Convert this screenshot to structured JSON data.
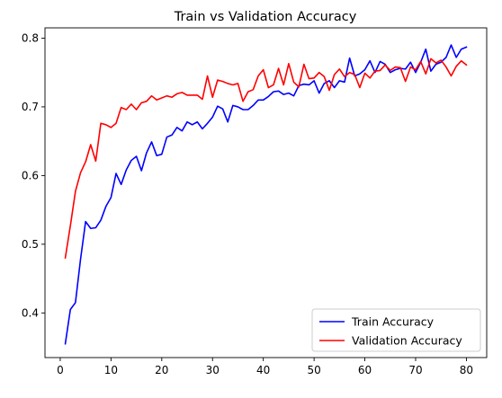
{
  "chart_data": {
    "type": "line",
    "title": "Train vs Validation Accuracy",
    "xlabel": "",
    "ylabel": "",
    "xlim": [
      -3,
      84
    ],
    "ylim": [
      0.335,
      0.815
    ],
    "xticks": [
      0,
      10,
      20,
      30,
      40,
      50,
      60,
      70,
      80
    ],
    "yticks": [
      0.4,
      0.5,
      0.6,
      0.7,
      0.8
    ],
    "grid": false,
    "legend_position": "lower-right",
    "x": [
      1,
      2,
      3,
      4,
      5,
      6,
      7,
      8,
      9,
      10,
      11,
      12,
      13,
      14,
      15,
      16,
      17,
      18,
      19,
      20,
      21,
      22,
      23,
      24,
      25,
      26,
      27,
      28,
      29,
      30,
      31,
      32,
      33,
      34,
      35,
      36,
      37,
      38,
      39,
      40,
      41,
      42,
      43,
      44,
      45,
      46,
      47,
      48,
      49,
      50,
      51,
      52,
      53,
      54,
      55,
      56,
      57,
      58,
      59,
      60,
      61,
      62,
      63,
      64,
      65,
      66,
      67,
      68,
      69,
      70,
      71,
      72,
      73,
      74,
      75,
      76,
      77,
      78,
      79,
      80
    ],
    "series": [
      {
        "name": "Train Accuracy",
        "color": "#0000ff",
        "values": [
          0.355,
          0.405,
          0.415,
          0.478,
          0.533,
          0.523,
          0.524,
          0.535,
          0.555,
          0.568,
          0.603,
          0.587,
          0.608,
          0.622,
          0.628,
          0.607,
          0.633,
          0.649,
          0.629,
          0.631,
          0.656,
          0.659,
          0.67,
          0.665,
          0.678,
          0.674,
          0.678,
          0.668,
          0.676,
          0.685,
          0.701,
          0.697,
          0.678,
          0.702,
          0.7,
          0.696,
          0.696,
          0.702,
          0.71,
          0.71,
          0.715,
          0.722,
          0.723,
          0.718,
          0.72,
          0.716,
          0.731,
          0.733,
          0.732,
          0.738,
          0.72,
          0.734,
          0.738,
          0.728,
          0.738,
          0.736,
          0.771,
          0.745,
          0.748,
          0.754,
          0.767,
          0.75,
          0.766,
          0.762,
          0.75,
          0.754,
          0.756,
          0.755,
          0.765,
          0.75,
          0.765,
          0.784,
          0.752,
          0.762,
          0.765,
          0.772,
          0.79,
          0.772,
          0.784,
          0.787
        ]
      },
      {
        "name": "Validation Accuracy",
        "color": "#ff0000",
        "values": [
          0.48,
          0.527,
          0.577,
          0.604,
          0.62,
          0.645,
          0.621,
          0.676,
          0.674,
          0.67,
          0.676,
          0.699,
          0.696,
          0.704,
          0.696,
          0.706,
          0.708,
          0.716,
          0.71,
          0.713,
          0.716,
          0.714,
          0.719,
          0.721,
          0.717,
          0.717,
          0.717,
          0.711,
          0.745,
          0.714,
          0.739,
          0.737,
          0.734,
          0.732,
          0.734,
          0.708,
          0.722,
          0.725,
          0.745,
          0.754,
          0.728,
          0.732,
          0.756,
          0.732,
          0.763,
          0.736,
          0.729,
          0.762,
          0.741,
          0.742,
          0.75,
          0.744,
          0.724,
          0.747,
          0.755,
          0.744,
          0.75,
          0.747,
          0.728,
          0.749,
          0.742,
          0.752,
          0.753,
          0.761,
          0.753,
          0.758,
          0.757,
          0.737,
          0.758,
          0.754,
          0.766,
          0.748,
          0.77,
          0.764,
          0.768,
          0.758,
          0.745,
          0.759,
          0.767,
          0.761
        ]
      }
    ]
  }
}
